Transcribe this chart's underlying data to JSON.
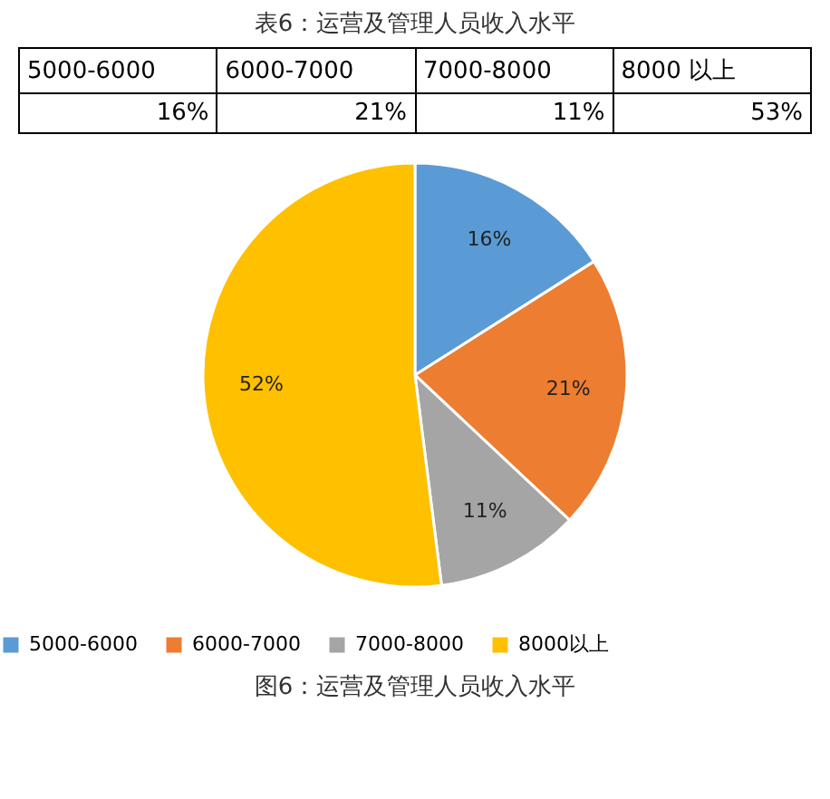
{
  "chart_data": [
    {
      "type": "other",
      "title": "表6：运营及管理人员收入水平",
      "annotations": [
        "5000-6000",
        "6000-7000",
        "7000-8000",
        "8000 以上",
        "16%",
        "21%",
        "11%",
        "53%"
      ]
    },
    {
      "type": "pie",
      "categories": [
        "5000-6000",
        "6000-7000",
        "7000-8000",
        "8000以上"
      ],
      "values": [
        16,
        21,
        11,
        52
      ],
      "colors": [
        "#5b9bd5",
        "#ed7d31",
        "#a5a5a5",
        "#ffc000"
      ],
      "value_labels": [
        "16%",
        "21%",
        "11%",
        "52%"
      ],
      "legend": "bottom",
      "annotations": [
        "图6：运营及管理人员收入水平"
      ]
    }
  ]
}
